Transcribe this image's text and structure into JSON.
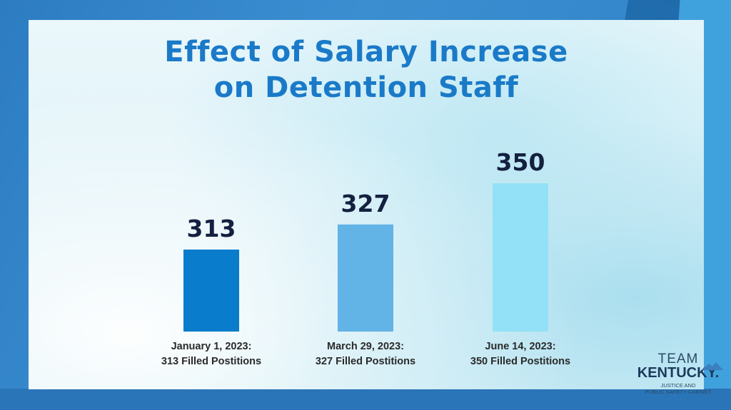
{
  "title_lines": [
    "Effect of Salary Increase",
    "on Detention Staff"
  ],
  "chart_data": {
    "type": "bar",
    "categories": [
      [
        "January 1, 2023:",
        "313 Filled Postitions"
      ],
      [
        "March 29, 2023:",
        "327 Filled Postitions"
      ],
      [
        "June 14, 2023:",
        "350 Filled Postitions"
      ]
    ],
    "values": [
      313,
      327,
      350
    ],
    "value_labels": [
      "313",
      "327",
      "350"
    ],
    "colors": [
      "#0a7ccc",
      "#62b3e6",
      "#92e1f6"
    ],
    "grid": false,
    "legend": "none"
  },
  "logo": {
    "team": "TEAM",
    "name": "KENTUCKY.",
    "subtitle_lines": [
      "JUSTICE AND",
      "PUBLIC SAFETY CABINET"
    ]
  }
}
